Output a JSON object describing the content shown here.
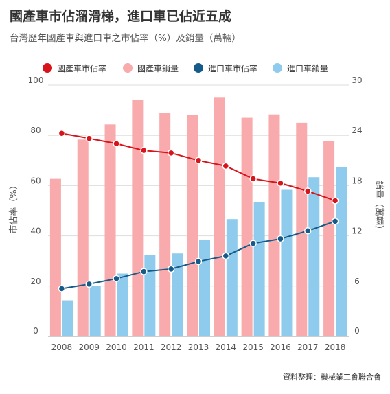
{
  "title": "國產車市佔溜滑梯，進口車已佔近五成",
  "subtitle": "台灣歷年國產車與進口車之市佔率（%）及銷量（萬輛）",
  "source": "資料整理：機械業工會聯合會",
  "chart_data": {
    "type": "bar+line",
    "categories": [
      "2008",
      "2009",
      "2010",
      "2011",
      "2012",
      "2013",
      "2014",
      "2015",
      "2016",
      "2017",
      "2018"
    ],
    "left_axis": {
      "label": "市佔率（%）",
      "range": [
        0,
        100
      ],
      "ticks": [
        0,
        20,
        40,
        60,
        80,
        100
      ]
    },
    "right_axis": {
      "label": "銷量（萬輛）",
      "range": [
        0,
        30
      ],
      "ticks": [
        0,
        6,
        12,
        18,
        24,
        30
      ]
    },
    "grid": true,
    "legend_position": "top",
    "series": [
      {
        "name": "國產車市佔率",
        "kind": "line",
        "axis": "left",
        "color": "#d7141a",
        "values": [
          80.8,
          78.8,
          76.7,
          74.0,
          73.0,
          70.0,
          67.8,
          62.7,
          61.0,
          57.8,
          54.0
        ]
      },
      {
        "name": "國產車銷量",
        "kind": "bar",
        "axis": "right",
        "color": "#f8aaac",
        "values": [
          18.8,
          23.5,
          25.3,
          28.2,
          26.7,
          26.4,
          28.5,
          26.1,
          26.5,
          25.5,
          23.3
        ]
      },
      {
        "name": "進口車市佔率",
        "kind": "line",
        "axis": "left",
        "color": "#155b8a",
        "values": [
          19.0,
          20.8,
          23.0,
          25.8,
          26.8,
          29.8,
          32.0,
          37.0,
          38.8,
          42.0,
          45.8
        ]
      },
      {
        "name": "進口車銷量",
        "kind": "bar",
        "axis": "right",
        "color": "#8fcbec",
        "values": [
          4.3,
          6.0,
          7.5,
          9.7,
          9.9,
          11.5,
          14.0,
          16.0,
          17.5,
          19.0,
          20.2
        ]
      }
    ]
  }
}
